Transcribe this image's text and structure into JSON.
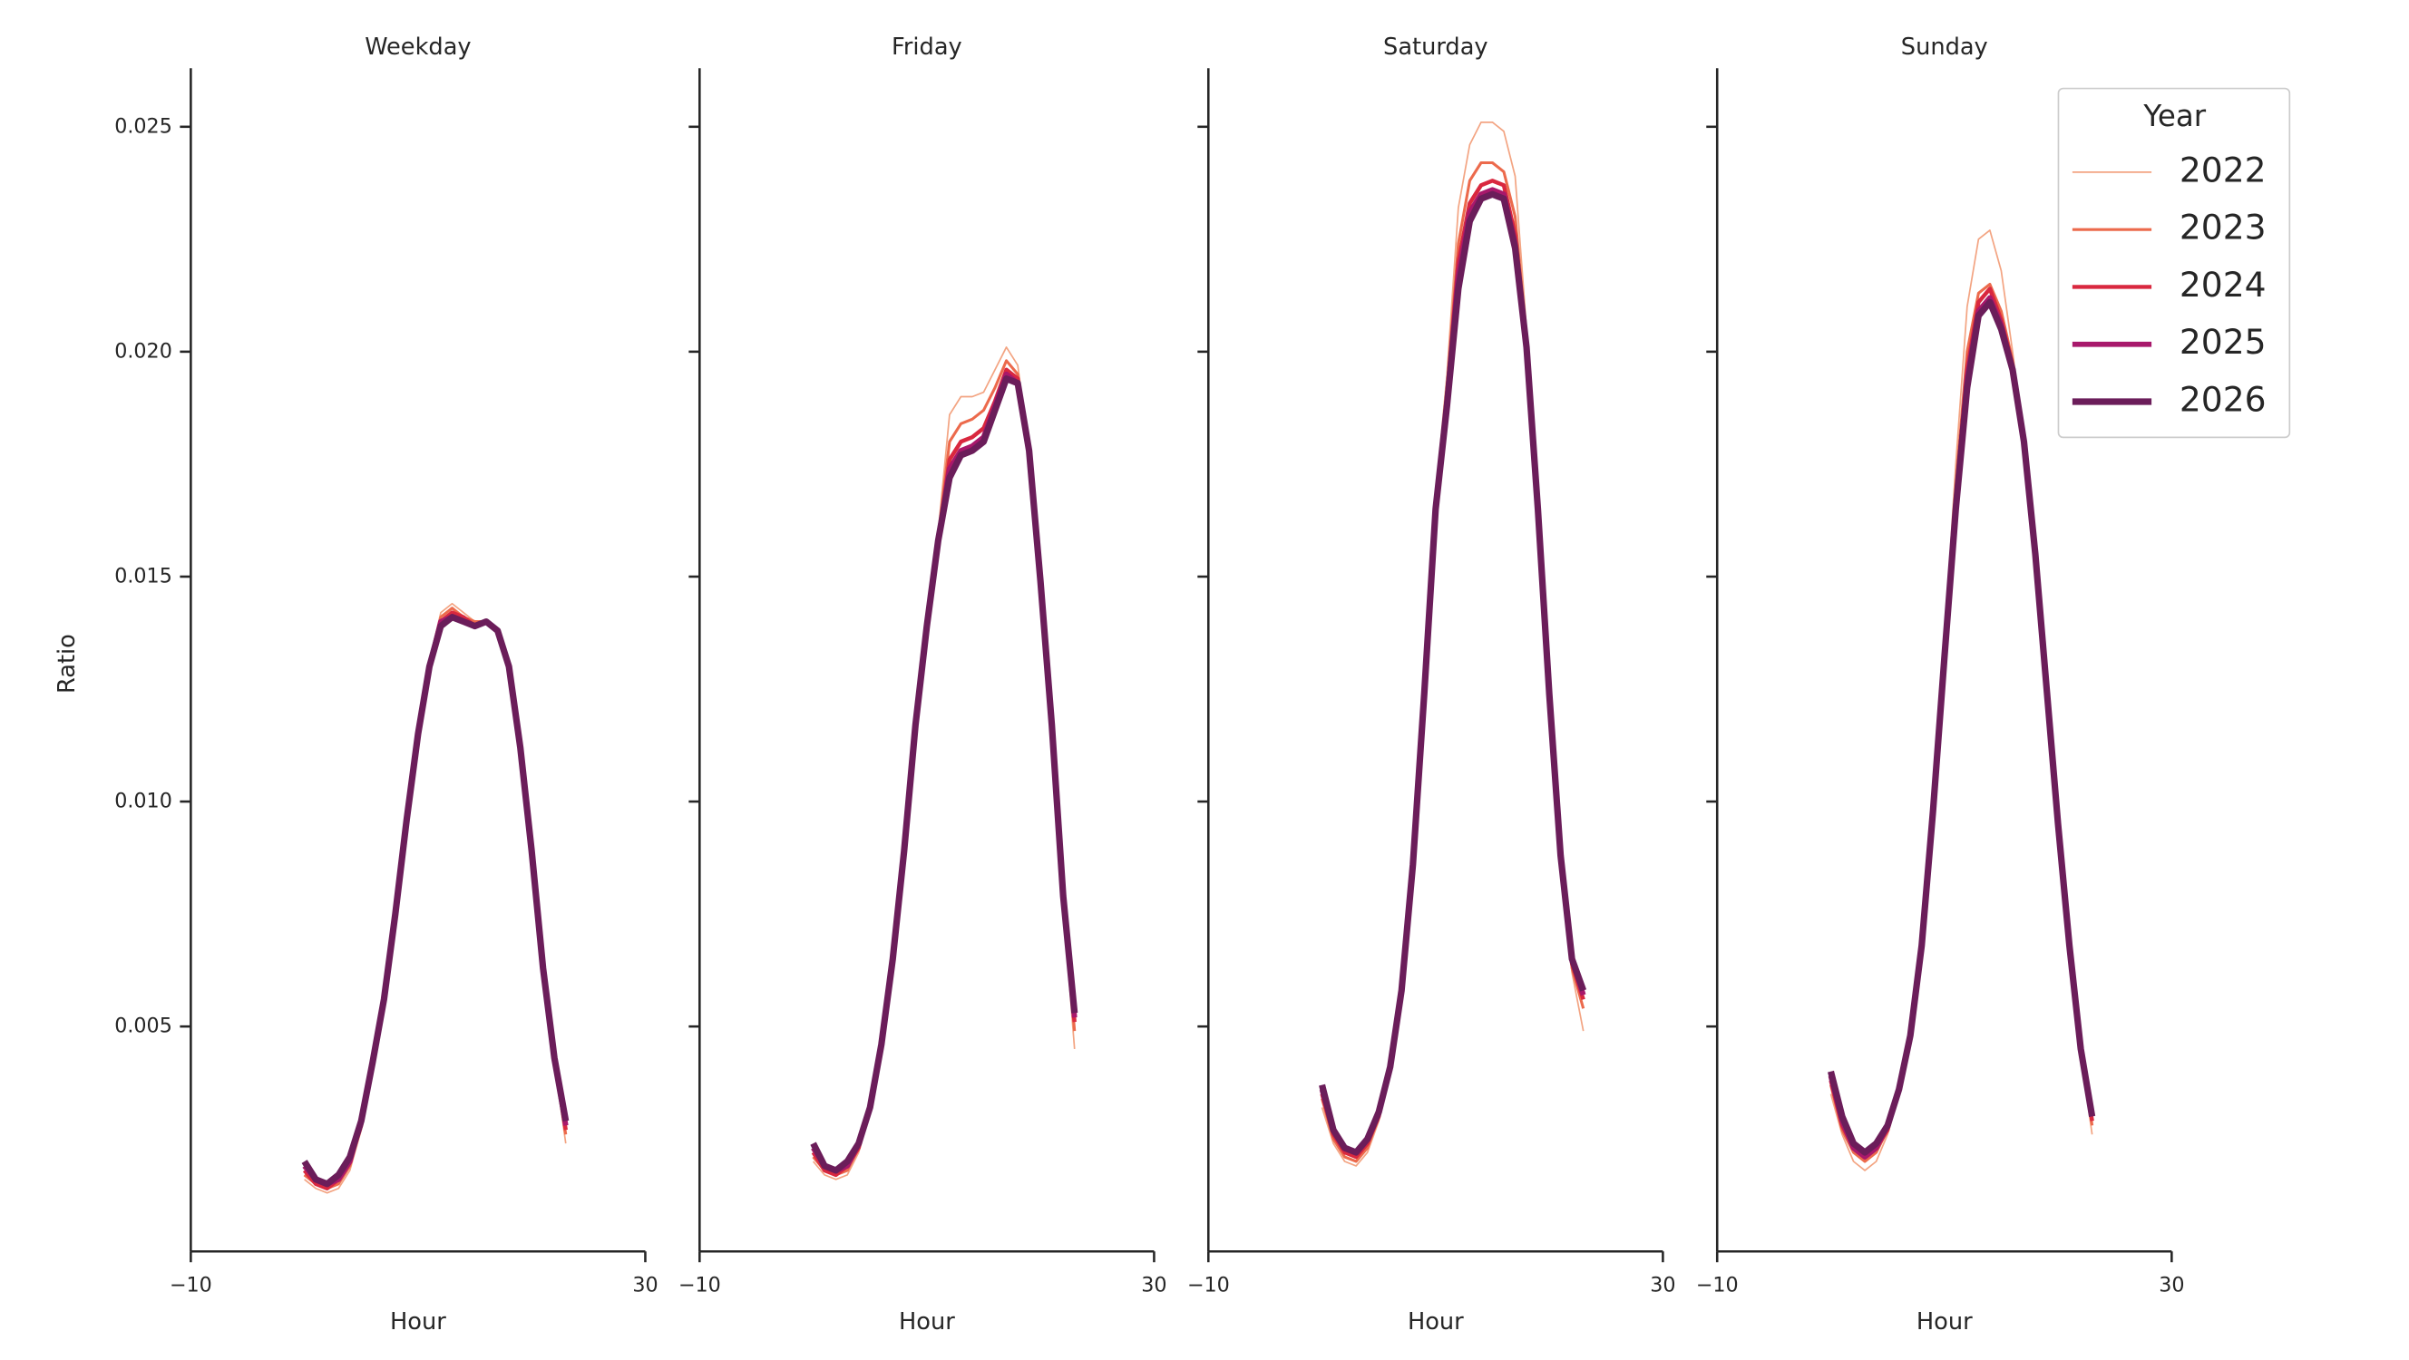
{
  "chart_data": [
    {
      "type": "line",
      "title": "Weekday",
      "xlabel": "Hour",
      "ylabel": "Ratio",
      "x": [
        0,
        1,
        2,
        3,
        4,
        5,
        6,
        7,
        8,
        9,
        10,
        11,
        12,
        13,
        14,
        15,
        16,
        17,
        18,
        19,
        20,
        21,
        22,
        23
      ],
      "xlim": [
        -10,
        30
      ],
      "xticks": [
        {
          "value": -10,
          "label": "−10"
        },
        30
      ],
      "ylim": [
        0,
        0.0263
      ],
      "yticks": [
        0.005,
        {
          "value": 0.01,
          "label": "0.010"
        },
        0.015,
        {
          "value": 0.02,
          "label": "0.020"
        },
        0.025
      ],
      "series": [
        {
          "name": "2022",
          "color": "#f3a482",
          "width": 1,
          "values": [
            0.0016,
            0.0014,
            0.0013,
            0.0014,
            0.0018,
            0.0027,
            0.0041,
            0.0056,
            0.0075,
            0.0096,
            0.0115,
            0.0131,
            0.0142,
            0.0144,
            0.0142,
            0.014,
            0.014,
            0.0138,
            0.013,
            0.0112,
            0.0089,
            0.0063,
            0.0042,
            0.0024
          ]
        },
        {
          "name": "2023",
          "color": "#ec6a4c",
          "width": 1.8,
          "values": [
            0.0017,
            0.0015,
            0.0014,
            0.0015,
            0.0019,
            0.0028,
            0.0041,
            0.0056,
            0.0075,
            0.0096,
            0.0115,
            0.0131,
            0.0141,
            0.0143,
            0.0141,
            0.014,
            0.014,
            0.0138,
            0.013,
            0.0112,
            0.0089,
            0.0063,
            0.0042,
            0.0026
          ]
        },
        {
          "name": "2024",
          "color": "#d9283f",
          "width": 2.6,
          "values": [
            0.0018,
            0.0015,
            0.0014,
            0.0016,
            0.002,
            0.0028,
            0.0042,
            0.0056,
            0.0075,
            0.0096,
            0.0115,
            0.013,
            0.014,
            0.0142,
            0.0141,
            0.0139,
            0.014,
            0.0138,
            0.013,
            0.0112,
            0.0089,
            0.0063,
            0.0043,
            0.0027
          ]
        },
        {
          "name": "2025",
          "color": "#a8186b",
          "width": 3.4,
          "values": [
            0.0019,
            0.0016,
            0.0015,
            0.0016,
            0.002,
            0.0029,
            0.0042,
            0.0056,
            0.0075,
            0.0096,
            0.0115,
            0.013,
            0.014,
            0.0141,
            0.014,
            0.0139,
            0.014,
            0.0138,
            0.013,
            0.0112,
            0.0089,
            0.0063,
            0.0043,
            0.0028
          ]
        },
        {
          "name": "2026",
          "color": "#6b1d5a",
          "width": 4.2,
          "values": [
            0.002,
            0.0016,
            0.0015,
            0.0017,
            0.0021,
            0.0029,
            0.0042,
            0.0056,
            0.0075,
            0.0096,
            0.0115,
            0.013,
            0.0139,
            0.0141,
            0.014,
            0.0139,
            0.014,
            0.0138,
            0.013,
            0.0112,
            0.0089,
            0.0063,
            0.0043,
            0.0029
          ]
        }
      ]
    },
    {
      "type": "line",
      "title": "Friday",
      "xlabel": "Hour",
      "x": [
        0,
        1,
        2,
        3,
        4,
        5,
        6,
        7,
        8,
        9,
        10,
        11,
        12,
        13,
        14,
        15,
        16,
        17,
        18,
        19,
        20,
        21,
        22,
        23
      ],
      "xlim": [
        -10,
        30
      ],
      "xticks": [
        {
          "value": -10,
          "label": "−10"
        },
        30
      ],
      "ylim": [
        0,
        0.0263
      ],
      "series": [
        {
          "name": "2022",
          "color": "#f3a482",
          "width": 1,
          "values": [
            0.002,
            0.0017,
            0.0016,
            0.0017,
            0.0022,
            0.0031,
            0.0046,
            0.0065,
            0.0089,
            0.0117,
            0.014,
            0.016,
            0.0186,
            0.019,
            0.019,
            0.0191,
            0.0196,
            0.0201,
            0.0197,
            0.0178,
            0.0149,
            0.0115,
            0.0077,
            0.0045
          ]
        },
        {
          "name": "2023",
          "color": "#ec6a4c",
          "width": 1.8,
          "values": [
            0.0021,
            0.0018,
            0.0017,
            0.0018,
            0.0023,
            0.0031,
            0.0046,
            0.0065,
            0.0089,
            0.0117,
            0.014,
            0.0159,
            0.018,
            0.0184,
            0.0185,
            0.0187,
            0.0192,
            0.0198,
            0.0195,
            0.0178,
            0.0149,
            0.0116,
            0.0078,
            0.0049
          ]
        },
        {
          "name": "2024",
          "color": "#d9283f",
          "width": 2.6,
          "values": [
            0.0022,
            0.0018,
            0.0017,
            0.0019,
            0.0023,
            0.0032,
            0.0046,
            0.0065,
            0.0089,
            0.0117,
            0.0139,
            0.0158,
            0.0176,
            0.018,
            0.0181,
            0.0183,
            0.0189,
            0.0196,
            0.0194,
            0.0178,
            0.0149,
            0.0116,
            0.0078,
            0.0051
          ]
        },
        {
          "name": "2025",
          "color": "#a8186b",
          "width": 3.4,
          "values": [
            0.0023,
            0.0019,
            0.0018,
            0.0019,
            0.0024,
            0.0032,
            0.0046,
            0.0065,
            0.0089,
            0.0117,
            0.0139,
            0.0158,
            0.0174,
            0.0178,
            0.0179,
            0.0181,
            0.0188,
            0.0195,
            0.0193,
            0.0178,
            0.0149,
            0.0117,
            0.0079,
            0.0052
          ]
        },
        {
          "name": "2026",
          "color": "#6b1d5a",
          "width": 4.2,
          "values": [
            0.0024,
            0.0019,
            0.0018,
            0.002,
            0.0024,
            0.0032,
            0.0046,
            0.0065,
            0.0089,
            0.0117,
            0.0139,
            0.0158,
            0.0172,
            0.0177,
            0.0178,
            0.018,
            0.0187,
            0.0194,
            0.0193,
            0.0178,
            0.0149,
            0.0117,
            0.0079,
            0.0053
          ]
        }
      ]
    },
    {
      "type": "line",
      "title": "Saturday",
      "xlabel": "Hour",
      "x": [
        0,
        1,
        2,
        3,
        4,
        5,
        6,
        7,
        8,
        9,
        10,
        11,
        12,
        13,
        14,
        15,
        16,
        17,
        18,
        19,
        20,
        21,
        22,
        23
      ],
      "xlim": [
        -10,
        30
      ],
      "xticks": [
        {
          "value": -10,
          "label": "−10"
        },
        30
      ],
      "ylim": [
        0,
        0.0263
      ],
      "series": [
        {
          "name": "2022",
          "color": "#f3a482",
          "width": 1,
          "values": [
            0.0032,
            0.0024,
            0.002,
            0.0019,
            0.0022,
            0.0029,
            0.004,
            0.0058,
            0.0086,
            0.0124,
            0.0168,
            0.0195,
            0.0232,
            0.0246,
            0.0251,
            0.0251,
            0.0249,
            0.0239,
            0.0205,
            0.0165,
            0.0122,
            0.0085,
            0.0062,
            0.0049
          ]
        },
        {
          "name": "2023",
          "color": "#ec6a4c",
          "width": 1.8,
          "values": [
            0.0034,
            0.0025,
            0.0021,
            0.002,
            0.0023,
            0.003,
            0.004,
            0.0058,
            0.0086,
            0.0124,
            0.0167,
            0.0192,
            0.0224,
            0.0238,
            0.0242,
            0.0242,
            0.024,
            0.023,
            0.0203,
            0.0165,
            0.0123,
            0.0086,
            0.0063,
            0.0054
          ]
        },
        {
          "name": "2024",
          "color": "#d9283f",
          "width": 2.6,
          "values": [
            0.0035,
            0.0026,
            0.0022,
            0.0021,
            0.0024,
            0.003,
            0.0041,
            0.0058,
            0.0086,
            0.0124,
            0.0166,
            0.019,
            0.022,
            0.0233,
            0.0237,
            0.0238,
            0.0237,
            0.0226,
            0.0202,
            0.0165,
            0.0124,
            0.0087,
            0.0064,
            0.0056
          ]
        },
        {
          "name": "2025",
          "color": "#a8186b",
          "width": 3.4,
          "values": [
            0.0036,
            0.0027,
            0.0023,
            0.0022,
            0.0025,
            0.0031,
            0.0041,
            0.0058,
            0.0086,
            0.0124,
            0.0165,
            0.0189,
            0.0217,
            0.0231,
            0.0235,
            0.0236,
            0.0235,
            0.0224,
            0.0201,
            0.0165,
            0.0124,
            0.0088,
            0.0065,
            0.0057
          ]
        },
        {
          "name": "2026",
          "color": "#6b1d5a",
          "width": 4.2,
          "values": [
            0.0037,
            0.0027,
            0.0023,
            0.0022,
            0.0025,
            0.0031,
            0.0041,
            0.0058,
            0.0086,
            0.0124,
            0.0165,
            0.0188,
            0.0214,
            0.0229,
            0.0234,
            0.0235,
            0.0234,
            0.0223,
            0.0201,
            0.0165,
            0.0124,
            0.0088,
            0.0065,
            0.0058
          ]
        }
      ]
    },
    {
      "type": "line",
      "title": "Sunday",
      "xlabel": "Hour",
      "x": [
        0,
        1,
        2,
        3,
        4,
        5,
        6,
        7,
        8,
        9,
        10,
        11,
        12,
        13,
        14,
        15,
        16,
        17,
        18,
        19,
        20,
        21,
        22,
        23
      ],
      "xlim": [
        -10,
        30
      ],
      "xticks": [
        {
          "value": -10,
          "label": "−10"
        },
        30
      ],
      "ylim": [
        0,
        0.0263
      ],
      "legend": {
        "title": "Year",
        "loc": "upper right"
      },
      "series": [
        {
          "name": "2022",
          "color": "#f3a482",
          "width": 1,
          "values": [
            0.0035,
            0.0026,
            0.002,
            0.0018,
            0.002,
            0.0026,
            0.0035,
            0.0048,
            0.0068,
            0.0098,
            0.0135,
            0.0175,
            0.021,
            0.0225,
            0.0227,
            0.0218,
            0.02,
            0.018,
            0.0155,
            0.0125,
            0.0095,
            0.0068,
            0.0044,
            0.0026
          ]
        },
        {
          "name": "2023",
          "color": "#ec6a4c",
          "width": 1.8,
          "values": [
            0.0037,
            0.0027,
            0.0022,
            0.002,
            0.0022,
            0.0027,
            0.0035,
            0.0048,
            0.0068,
            0.0098,
            0.0134,
            0.017,
            0.02,
            0.0213,
            0.0215,
            0.0209,
            0.0198,
            0.018,
            0.0155,
            0.0125,
            0.0095,
            0.0068,
            0.0045,
            0.0028
          ]
        },
        {
          "name": "2024",
          "color": "#d9283f",
          "width": 2.6,
          "values": [
            0.0038,
            0.0028,
            0.0023,
            0.0021,
            0.0023,
            0.0027,
            0.0036,
            0.0048,
            0.0068,
            0.0098,
            0.0133,
            0.0167,
            0.0196,
            0.0211,
            0.0214,
            0.0207,
            0.0197,
            0.018,
            0.0155,
            0.0125,
            0.0095,
            0.0068,
            0.0045,
            0.0029
          ]
        },
        {
          "name": "2025",
          "color": "#a8186b",
          "width": 3.4,
          "values": [
            0.0039,
            0.0029,
            0.0023,
            0.0021,
            0.0023,
            0.0028,
            0.0036,
            0.0048,
            0.0068,
            0.0098,
            0.0132,
            0.0166,
            0.0194,
            0.0209,
            0.0212,
            0.0206,
            0.0196,
            0.018,
            0.0155,
            0.0125,
            0.0095,
            0.0068,
            0.0045,
            0.003
          ]
        },
        {
          "name": "2026",
          "color": "#6b1d5a",
          "width": 4.2,
          "values": [
            0.004,
            0.003,
            0.0024,
            0.0022,
            0.0024,
            0.0028,
            0.0036,
            0.0048,
            0.0068,
            0.0098,
            0.0132,
            0.0165,
            0.0192,
            0.0208,
            0.0211,
            0.0205,
            0.0196,
            0.018,
            0.0155,
            0.0125,
            0.0095,
            0.0068,
            0.0045,
            0.003
          ]
        }
      ]
    }
  ]
}
